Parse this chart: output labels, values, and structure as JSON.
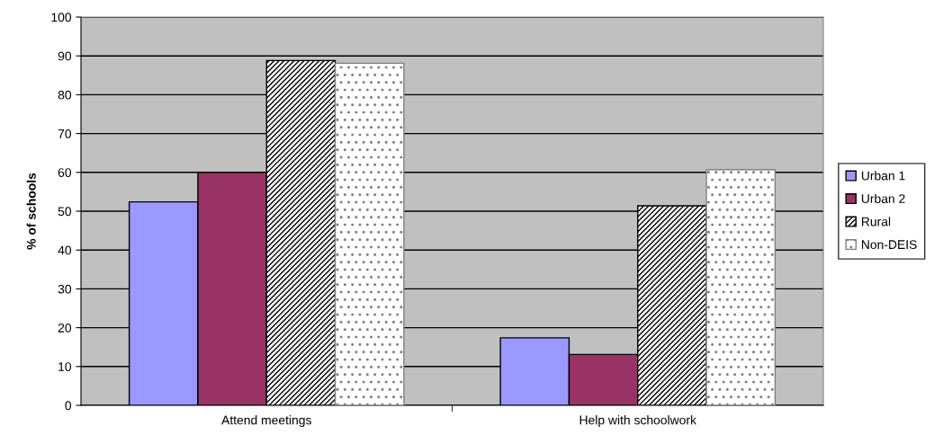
{
  "chart_data": {
    "type": "bar",
    "ylabel": "% of schools",
    "categories": [
      "Attend meetings",
      "Help with schoolwork"
    ],
    "series": [
      {
        "name": "Urban 1",
        "color": "#9999ff",
        "values": [
          52.4,
          17.4
        ]
      },
      {
        "name": "Urban 2",
        "color": "#993366",
        "values": [
          60,
          13.1
        ]
      },
      {
        "name": "Rural",
        "color": "#000000",
        "values": [
          88.8,
          51.4
        ]
      },
      {
        "name": "Non-DEIS",
        "color": "#808080",
        "values": [
          88.1,
          60.7
        ]
      }
    ],
    "ylim": [
      0,
      100
    ],
    "yticks": [
      0,
      10,
      20,
      30,
      40,
      50,
      60,
      70,
      80,
      90,
      100
    ],
    "grid": "y",
    "legend": "right"
  }
}
